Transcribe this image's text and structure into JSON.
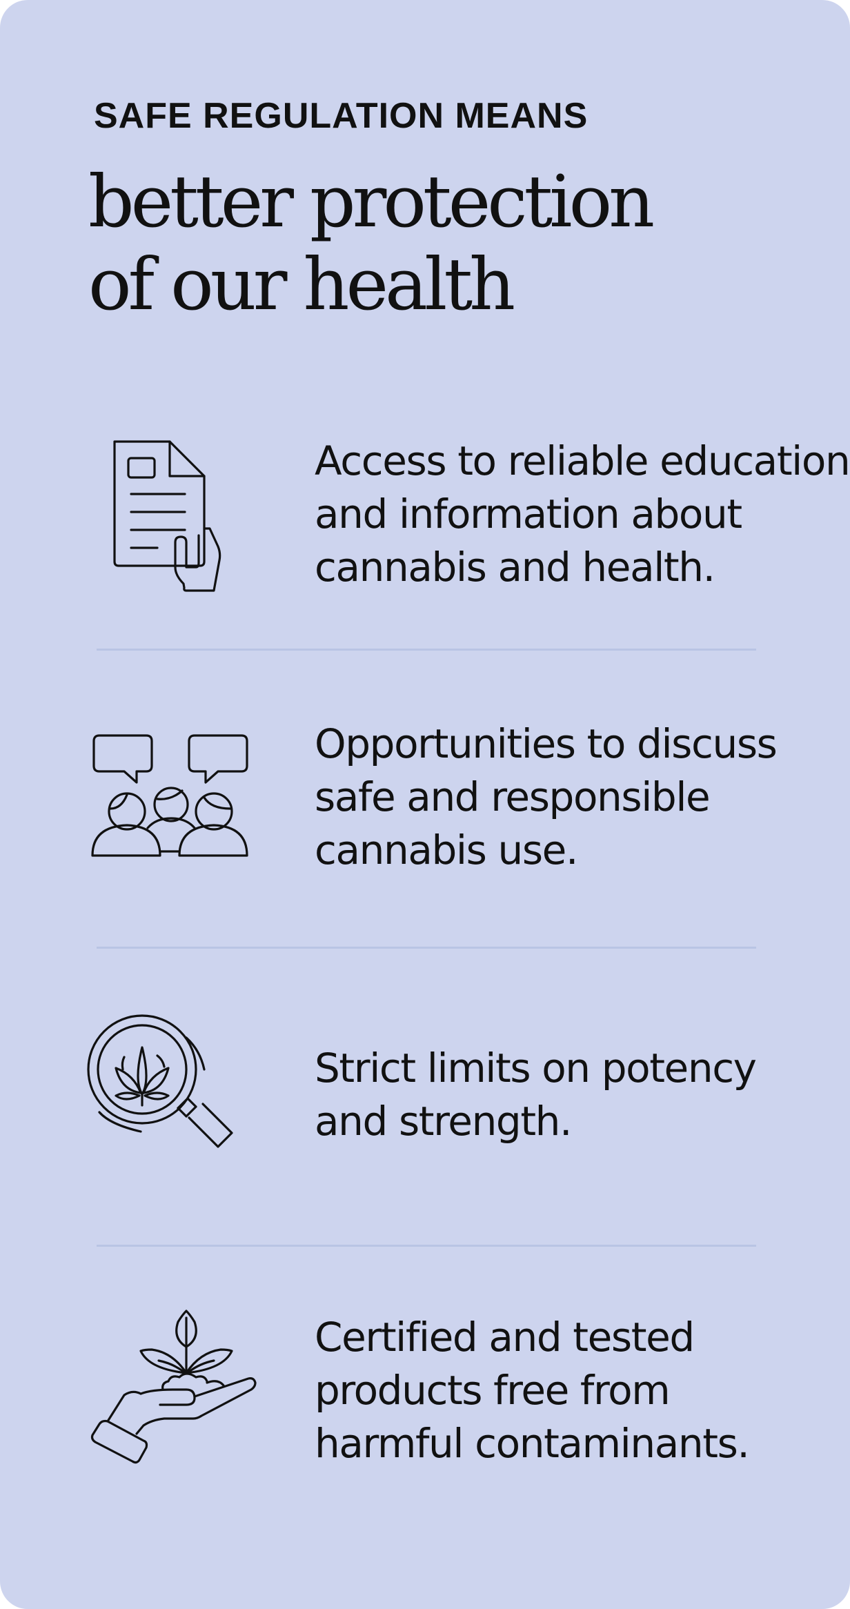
{
  "eyebrow": "SAFE REGULATION MEANS",
  "headline": {
    "line1": "better protection",
    "line2": "of our health"
  },
  "colors": {
    "card_background": "#cdd4ee",
    "text": "#111111",
    "divider": "#b9c4e4"
  },
  "items": [
    {
      "icon": "document-in-hand-icon",
      "lines": [
        "Access to reliable education",
        "and information about",
        "cannabis and health."
      ]
    },
    {
      "icon": "people-discussion-icon",
      "lines": [
        "Opportunities to discuss",
        "safe and responsible",
        "cannabis use."
      ]
    },
    {
      "icon": "magnifier-cannabis-leaf-icon",
      "lines": [
        "Strict limits on potency",
        "and strength."
      ]
    },
    {
      "icon": "hand-holding-plant-icon",
      "lines": [
        "Certified and tested",
        "products free from",
        "harmful contaminants."
      ]
    }
  ]
}
